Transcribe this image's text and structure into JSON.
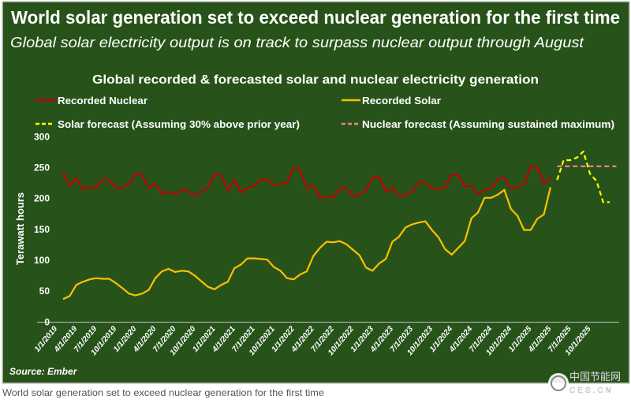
{
  "header": {
    "title": "World solar generation set to exceed nuclear generation for the first time",
    "subtitle": "Global solar electricity output is on track to surpass nuclear output through August"
  },
  "source": "Source: Ember",
  "caption": "World solar generation set to exceed nuclear generation for the first time",
  "watermark": {
    "text_cn": "中国节能网",
    "text_en": "CES.CN"
  },
  "colors": {
    "background": "#27531a",
    "recorded_nuclear": "#c00000",
    "recorded_solar": "#ffc000",
    "solar_forecast": "#ffff00",
    "nuclear_forecast": "#ff7c99"
  },
  "chart_data": {
    "type": "line",
    "title": "Global recorded & forecasted solar and nuclear electricity generation",
    "ylabel": "Terawatt hours",
    "xlabel": "",
    "ylim": [
      0,
      300
    ],
    "yticks": [
      "0",
      "50",
      "100",
      "150",
      "200",
      "250",
      "300"
    ],
    "x_start": "1/1/2019",
    "x_frequency": "monthly",
    "xtick_labels": [
      "1/1/2019",
      "4/1/2019",
      "7/1/2019",
      "10/1/2019",
      "1/1/2020",
      "4/1/2020",
      "7/1/2020",
      "10/1/2020",
      "1/1/2021",
      "4/1/2021",
      "7/1/2021",
      "10/1/2021",
      "1/1/2022",
      "4/1/2022",
      "7/1/2022",
      "10/1/2022",
      "1/1/2023",
      "4/1/2023",
      "7/1/2023",
      "10/1/2023",
      "1/1/2024",
      "4/1/2024",
      "7/1/2024",
      "10/1/2024",
      "1/1/2025",
      "4/1/2025",
      "7/1/2025",
      "10/1/2025"
    ],
    "grid": false,
    "legend_position": "top",
    "series": [
      {
        "name": "Recorded Nuclear",
        "style": "solid",
        "start": "1/1/2019",
        "values": [
          242,
          220,
          233,
          215,
          218,
          217,
          230,
          230,
          217,
          217,
          223,
          240,
          237,
          217,
          224,
          208,
          211,
          206,
          214,
          211,
          204,
          211,
          218,
          240,
          237,
          213,
          230,
          210,
          217,
          220,
          231,
          230,
          222,
          223,
          226,
          250,
          246,
          216,
          222,
          200,
          204,
          201,
          216,
          217,
          204,
          205,
          214,
          234,
          235,
          211,
          219,
          203,
          206,
          211,
          226,
          226,
          216,
          216,
          218,
          238,
          238,
          220,
          220,
          207,
          214,
          216,
          232,
          233,
          216,
          218,
          223,
          252,
          251,
          223,
          235
        ]
      },
      {
        "name": "Recorded Solar",
        "style": "solid",
        "start": "1/1/2019",
        "values": [
          37,
          42,
          60,
          65,
          69,
          71,
          70,
          70,
          63,
          55,
          46,
          43,
          46,
          52,
          71,
          82,
          86,
          81,
          83,
          82,
          75,
          66,
          57,
          53,
          60,
          65,
          87,
          93,
          103,
          103,
          102,
          101,
          89,
          83,
          71,
          69,
          77,
          82,
          107,
          120,
          130,
          129,
          131,
          126,
          117,
          108,
          88,
          83,
          95,
          102,
          130,
          138,
          153,
          158,
          161,
          163,
          149,
          137,
          118,
          109,
          120,
          131,
          168,
          177,
          201,
          201,
          206,
          214,
          183,
          172,
          149,
          149,
          167,
          174,
          218
        ]
      },
      {
        "name": "Solar forecast (Assuming 30% above prior year)",
        "style": "dashed",
        "start": "4/1/2025",
        "values": [
          230,
          262,
          262,
          266,
          276,
          240,
          228,
          194,
          194
        ]
      },
      {
        "name": "Nuclear forecast (Assuming sustained maximum)",
        "style": "dashed",
        "start": "4/1/2025",
        "values": [
          252,
          252,
          252,
          252,
          252,
          252,
          252,
          252,
          252,
          252
        ]
      }
    ]
  }
}
